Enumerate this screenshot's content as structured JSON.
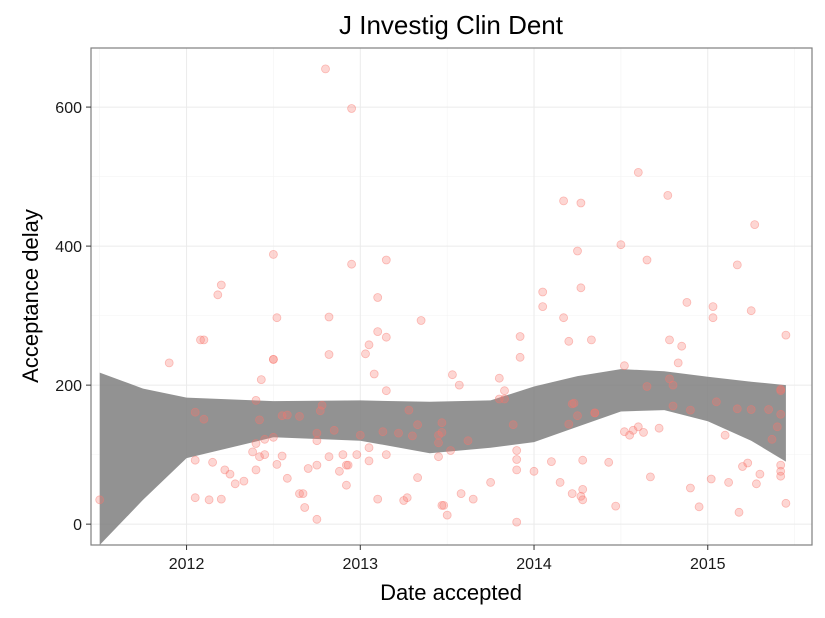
{
  "chart_data": {
    "type": "scatter",
    "title": "J Investig Clin Dent",
    "xlabel": "Date accepted",
    "ylabel": "Acceptance delay",
    "x_ticks": [
      "2012",
      "2013",
      "2014",
      "2015"
    ],
    "y_ticks": [
      0,
      200,
      400,
      600
    ],
    "xlim": [
      2011.45,
      2015.6
    ],
    "ylim": [
      -30,
      685
    ],
    "grid": true,
    "legend": "none",
    "colors": {
      "points": "#f8766d",
      "band": "#7f7f7f",
      "panel_border": "#7f7f7f",
      "grid": "#ebebeb"
    },
    "points": [
      [
        2011.5,
        35
      ],
      [
        2011.9,
        232
      ],
      [
        2012.05,
        92
      ],
      [
        2012.05,
        161
      ],
      [
        2012.08,
        265
      ],
      [
        2012.1,
        265
      ],
      [
        2012.1,
        151
      ],
      [
        2012.05,
        38
      ],
      [
        2012.13,
        35
      ],
      [
        2012.15,
        89
      ],
      [
        2012.2,
        36
      ],
      [
        2012.18,
        330
      ],
      [
        2012.2,
        344
      ],
      [
        2012.22,
        78
      ],
      [
        2012.25,
        72
      ],
      [
        2012.28,
        58
      ],
      [
        2012.33,
        62
      ],
      [
        2012.38,
        104
      ],
      [
        2012.4,
        116
      ],
      [
        2012.42,
        150
      ],
      [
        2012.4,
        178
      ],
      [
        2012.43,
        208
      ],
      [
        2012.42,
        97
      ],
      [
        2012.4,
        78
      ],
      [
        2012.45,
        122
      ],
      [
        2012.45,
        100
      ],
      [
        2012.5,
        388
      ],
      [
        2012.5,
        237
      ],
      [
        2012.5,
        237
      ],
      [
        2012.52,
        297
      ],
      [
        2012.5,
        125
      ],
      [
        2012.52,
        86
      ],
      [
        2012.55,
        98
      ],
      [
        2012.55,
        156
      ],
      [
        2012.58,
        157
      ],
      [
        2012.58,
        66
      ],
      [
        2012.65,
        155
      ],
      [
        2012.65,
        44
      ],
      [
        2012.67,
        44
      ],
      [
        2012.68,
        24
      ],
      [
        2012.7,
        80
      ],
      [
        2012.75,
        7
      ],
      [
        2012.75,
        120
      ],
      [
        2012.75,
        85
      ],
      [
        2012.75,
        131
      ],
      [
        2012.77,
        163
      ],
      [
        2012.78,
        171
      ],
      [
        2012.8,
        655
      ],
      [
        2012.82,
        244
      ],
      [
        2012.82,
        298
      ],
      [
        2012.82,
        97
      ],
      [
        2012.85,
        135
      ],
      [
        2012.88,
        76
      ],
      [
        2012.9,
        100
      ],
      [
        2012.92,
        85
      ],
      [
        2012.92,
        56
      ],
      [
        2012.93,
        85
      ],
      [
        2012.95,
        598
      ],
      [
        2012.95,
        374
      ],
      [
        2012.98,
        100
      ],
      [
        2013.0,
        128
      ],
      [
        2013.03,
        245
      ],
      [
        2013.05,
        258
      ],
      [
        2013.05,
        110
      ],
      [
        2013.05,
        91
      ],
      [
        2013.08,
        216
      ],
      [
        2013.1,
        277
      ],
      [
        2013.1,
        326
      ],
      [
        2013.1,
        36
      ],
      [
        2013.13,
        133
      ],
      [
        2013.15,
        269
      ],
      [
        2013.15,
        192
      ],
      [
        2013.15,
        100
      ],
      [
        2013.15,
        380
      ],
      [
        2013.22,
        131
      ],
      [
        2013.25,
        34
      ],
      [
        2013.27,
        38
      ],
      [
        2013.3,
        127
      ],
      [
        2013.28,
        164
      ],
      [
        2013.33,
        67
      ],
      [
        2013.33,
        143
      ],
      [
        2013.35,
        293
      ],
      [
        2013.45,
        97
      ],
      [
        2013.45,
        117
      ],
      [
        2013.45,
        128
      ],
      [
        2013.47,
        132
      ],
      [
        2013.47,
        146
      ],
      [
        2013.47,
        27
      ],
      [
        2013.48,
        27
      ],
      [
        2013.5,
        13
      ],
      [
        2013.52,
        106
      ],
      [
        2013.53,
        215
      ],
      [
        2013.57,
        200
      ],
      [
        2013.58,
        44
      ],
      [
        2013.62,
        120
      ],
      [
        2013.65,
        36
      ],
      [
        2013.75,
        60
      ],
      [
        2013.8,
        210
      ],
      [
        2013.8,
        180
      ],
      [
        2013.83,
        180
      ],
      [
        2013.83,
        192
      ],
      [
        2013.88,
        143
      ],
      [
        2013.9,
        106
      ],
      [
        2013.9,
        93
      ],
      [
        2013.9,
        78
      ],
      [
        2013.9,
        3
      ],
      [
        2013.92,
        240
      ],
      [
        2013.92,
        270
      ],
      [
        2014.0,
        76
      ],
      [
        2014.05,
        313
      ],
      [
        2014.05,
        334
      ],
      [
        2014.1,
        90
      ],
      [
        2014.15,
        60
      ],
      [
        2014.17,
        465
      ],
      [
        2014.17,
        297
      ],
      [
        2014.2,
        263
      ],
      [
        2014.2,
        144
      ],
      [
        2014.22,
        44
      ],
      [
        2014.22,
        173
      ],
      [
        2014.23,
        174
      ],
      [
        2014.25,
        156
      ],
      [
        2014.25,
        393
      ],
      [
        2014.27,
        462
      ],
      [
        2014.27,
        340
      ],
      [
        2014.28,
        92
      ],
      [
        2014.28,
        50
      ],
      [
        2014.28,
        35
      ],
      [
        2014.27,
        40
      ],
      [
        2014.33,
        265
      ],
      [
        2014.35,
        160
      ],
      [
        2014.35,
        160
      ],
      [
        2014.43,
        89
      ],
      [
        2014.47,
        26
      ],
      [
        2014.5,
        402
      ],
      [
        2014.52,
        228
      ],
      [
        2014.52,
        133
      ],
      [
        2014.55,
        128
      ],
      [
        2014.57,
        135
      ],
      [
        2014.6,
        506
      ],
      [
        2014.6,
        140
      ],
      [
        2014.63,
        132
      ],
      [
        2014.65,
        380
      ],
      [
        2014.65,
        198
      ],
      [
        2014.67,
        68
      ],
      [
        2014.72,
        138
      ],
      [
        2014.77,
        473
      ],
      [
        2014.78,
        265
      ],
      [
        2014.78,
        209
      ],
      [
        2014.8,
        200
      ],
      [
        2014.8,
        170
      ],
      [
        2014.83,
        232
      ],
      [
        2014.85,
        256
      ],
      [
        2014.88,
        319
      ],
      [
        2014.9,
        164
      ],
      [
        2014.9,
        52
      ],
      [
        2014.95,
        25
      ],
      [
        2015.02,
        65
      ],
      [
        2015.03,
        313
      ],
      [
        2015.03,
        297
      ],
      [
        2015.05,
        176
      ],
      [
        2015.1,
        128
      ],
      [
        2015.12,
        60
      ],
      [
        2015.17,
        373
      ],
      [
        2015.17,
        166
      ],
      [
        2015.18,
        17
      ],
      [
        2015.2,
        83
      ],
      [
        2015.23,
        88
      ],
      [
        2015.25,
        307
      ],
      [
        2015.25,
        165
      ],
      [
        2015.27,
        431
      ],
      [
        2015.28,
        58
      ],
      [
        2015.3,
        72
      ],
      [
        2015.35,
        165
      ],
      [
        2015.37,
        122
      ],
      [
        2015.4,
        140
      ],
      [
        2015.42,
        158
      ],
      [
        2015.42,
        192
      ],
      [
        2015.42,
        194
      ],
      [
        2015.42,
        85
      ],
      [
        2015.42,
        76
      ],
      [
        2015.42,
        69
      ],
      [
        2015.45,
        272
      ],
      [
        2015.45,
        30
      ]
    ],
    "confidence_band": {
      "x": [
        2011.5,
        2011.75,
        2012.0,
        2012.5,
        2013.0,
        2013.4,
        2013.75,
        2014.0,
        2014.25,
        2014.5,
        2014.75,
        2015.0,
        2015.25,
        2015.45
      ],
      "upper": [
        218,
        195,
        182,
        177,
        178,
        176,
        178,
        198,
        213,
        223,
        220,
        212,
        205,
        200
      ],
      "lower": [
        -30,
        35,
        95,
        125,
        120,
        102,
        110,
        118,
        140,
        162,
        164,
        148,
        120,
        90
      ]
    }
  }
}
